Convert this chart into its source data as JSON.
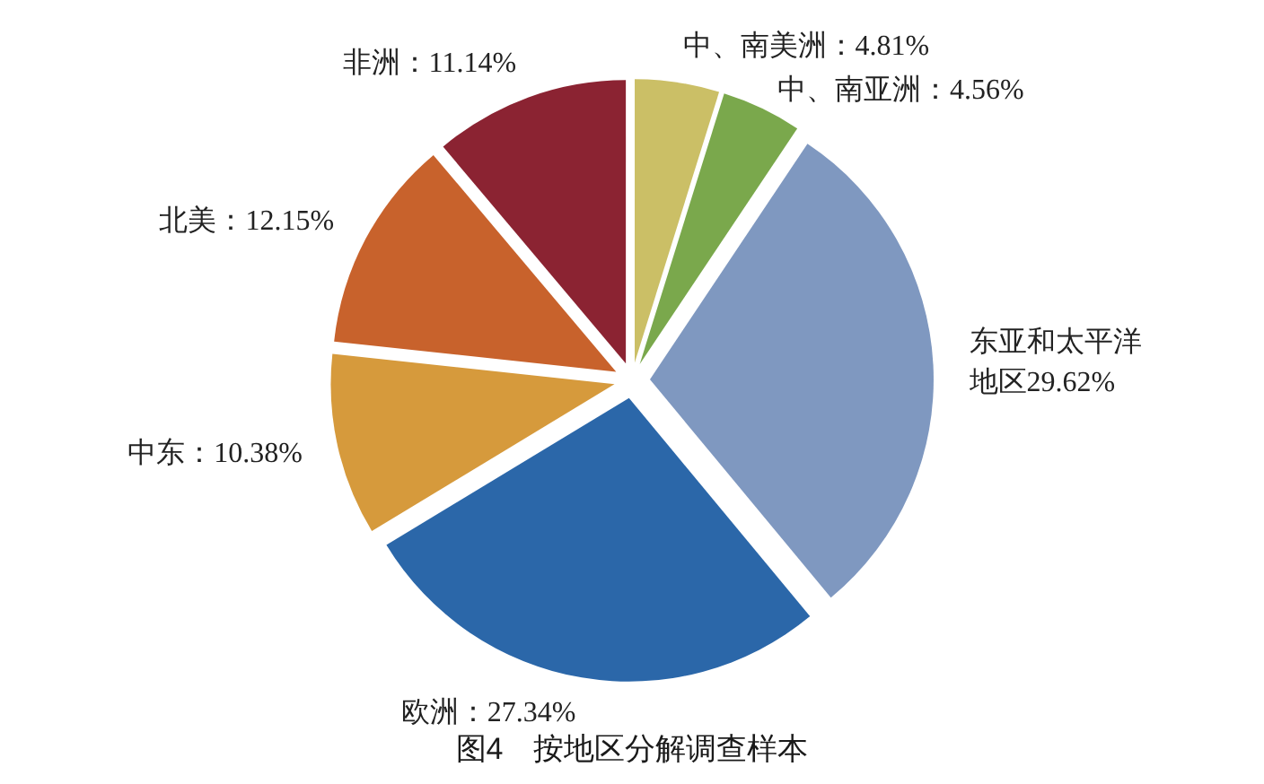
{
  "chart_data": {
    "type": "pie",
    "title": "图4　按地区分解调查样本",
    "categories": [
      "中、南美洲",
      "中、南亚洲",
      "东亚和太平洋地区",
      "欧洲",
      "中东",
      "北美",
      "非洲"
    ],
    "values": [
      4.81,
      4.56,
      29.62,
      27.34,
      10.38,
      12.15,
      11.14
    ],
    "colors": [
      "#cbbf66",
      "#7aa84c",
      "#7f98c0",
      "#2b67a9",
      "#d69a3c",
      "#c8622c",
      "#8b2332"
    ],
    "value_labels": [
      "：4.81%",
      "：4.56%",
      "29.62%",
      "：27.34%",
      "：10.38%",
      "：12.15%",
      "：11.14%"
    ]
  }
}
